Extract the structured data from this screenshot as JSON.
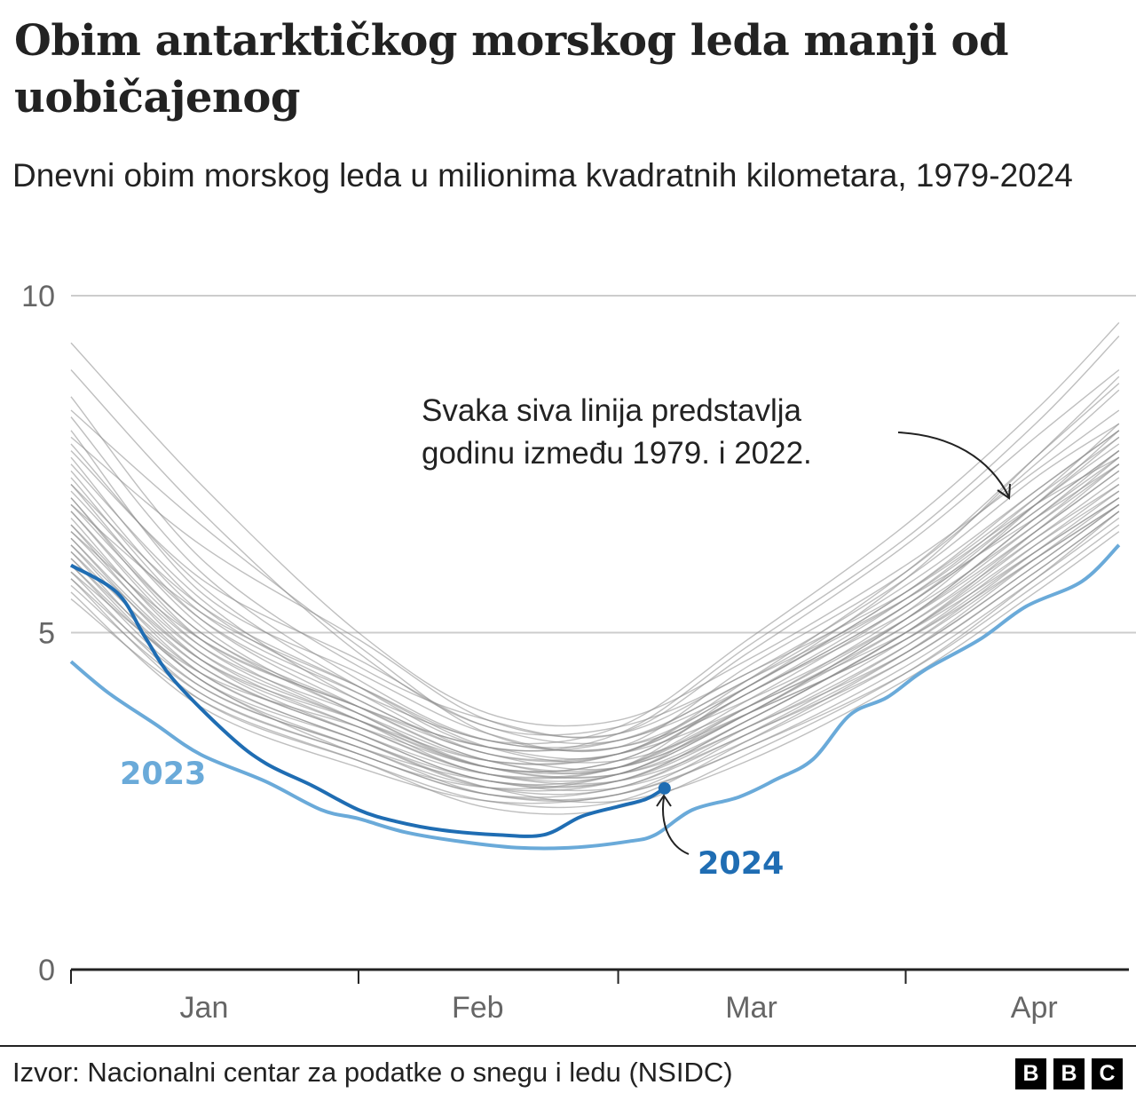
{
  "header": {
    "title": "Obim antarktičkog morskog leda manji od uobičajenog",
    "subtitle": "Dnevni obim morskog leda u milionima kvadratnih kilometara, 1979-2024"
  },
  "footer": {
    "source": "Izvor: Nacionalni centar za podatke o snegu i ledu (NSIDC)",
    "logo": [
      "B",
      "B",
      "C"
    ]
  },
  "chart_data": {
    "type": "line",
    "title": "Obim antarktičkog morskog leda manji od uobičajenog",
    "subtitle": "Dnevni obim morskog leda u milionima kvadratnih kilometara, 1979-2024",
    "ylim": [
      0,
      10
    ],
    "yticks": [
      {
        "value": 0,
        "label": "0"
      },
      {
        "value": 5,
        "label": "5"
      },
      {
        "value": 10,
        "label": "10"
      }
    ],
    "xlim": [
      "01-01",
      "04-24"
    ],
    "xticks": [
      {
        "label": "Jan",
        "start": "01-01"
      },
      {
        "label": "Feb",
        "start": "02-01"
      },
      {
        "label": "Mar",
        "start": "03-01"
      },
      {
        "label": "Apr",
        "start": "04-01"
      }
    ],
    "grid": "horizontal",
    "colors": {
      "grey_years": "#8a8a8a",
      "y2023": "#6aaad9",
      "y2024": "#1f6db3",
      "grid": "#cccccc",
      "axis": "#222222"
    },
    "annotations": {
      "grey_note": "Svaka siva linija predstavlja godinu između 1979. i 2022.",
      "label_2023": "2023",
      "label_2024": "2024"
    },
    "grey_years_range": "1979-2022",
    "grey_dates": [
      "01-01",
      "01-15",
      "02-01",
      "02-15",
      "03-01",
      "03-15",
      "04-01",
      "04-15",
      "04-24"
    ],
    "grey_series": [
      [
        9.3,
        7.2,
        5.0,
        3.8,
        3.7,
        4.6,
        6.0,
        7.4,
        8.3
      ],
      [
        8.9,
        6.8,
        4.7,
        3.6,
        3.6,
        4.4,
        5.8,
        7.3,
        8.1
      ],
      [
        8.5,
        6.1,
        4.5,
        3.7,
        3.5,
        4.7,
        6.3,
        7.9,
        8.9
      ],
      [
        8.2,
        5.9,
        4.3,
        3.4,
        3.4,
        4.2,
        5.6,
        7.0,
        7.9
      ],
      [
        8.0,
        5.6,
        4.4,
        3.5,
        3.3,
        4.5,
        5.9,
        7.5,
        8.6
      ],
      [
        7.8,
        5.7,
        4.2,
        3.3,
        3.5,
        4.8,
        6.4,
        8.1,
        9.4
      ],
      [
        7.6,
        5.4,
        4.1,
        3.2,
        3.2,
        4.1,
        5.4,
        6.8,
        7.7
      ],
      [
        7.5,
        5.5,
        4.0,
        3.3,
        3.4,
        4.3,
        5.7,
        7.1,
        8.0
      ],
      [
        7.4,
        5.3,
        4.1,
        3.4,
        3.3,
        4.0,
        5.2,
        6.5,
        7.4
      ],
      [
        7.3,
        5.2,
        3.9,
        3.1,
        3.0,
        4.2,
        5.5,
        6.9,
        7.9
      ],
      [
        7.2,
        5.1,
        3.8,
        3.0,
        3.1,
        4.1,
        5.5,
        7.0,
        8.1
      ],
      [
        7.1,
        5.2,
        4.0,
        3.2,
        3.2,
        3.9,
        5.1,
        6.4,
        7.2
      ],
      [
        7.0,
        5.0,
        3.9,
        3.1,
        3.0,
        3.8,
        5.2,
        6.7,
        7.6
      ],
      [
        7.0,
        4.9,
        3.7,
        2.9,
        3.0,
        4.0,
        5.4,
        6.9,
        7.8
      ],
      [
        6.9,
        5.0,
        3.8,
        3.0,
        2.9,
        3.7,
        5.0,
        6.3,
        7.1
      ],
      [
        6.8,
        4.8,
        3.7,
        3.0,
        3.1,
        4.1,
        5.3,
        6.6,
        7.5
      ],
      [
        6.8,
        4.9,
        3.9,
        3.2,
        3.0,
        3.8,
        4.9,
        6.2,
        7.0
      ],
      [
        6.7,
        4.7,
        3.6,
        2.9,
        2.9,
        3.9,
        5.2,
        6.6,
        7.6
      ],
      [
        6.6,
        4.8,
        3.8,
        3.1,
        3.2,
        4.2,
        5.6,
        7.1,
        8.0
      ],
      [
        6.6,
        4.6,
        3.5,
        2.8,
        2.8,
        3.7,
        5.0,
        6.4,
        7.3
      ],
      [
        6.5,
        4.7,
        3.7,
        3.0,
        2.9,
        3.6,
        4.8,
        6.1,
        6.9
      ],
      [
        6.4,
        4.5,
        3.5,
        2.8,
        2.9,
        3.8,
        5.1,
        6.5,
        7.4
      ],
      [
        6.4,
        4.6,
        3.6,
        2.9,
        2.8,
        3.5,
        4.7,
        6.0,
        6.9
      ],
      [
        6.3,
        4.4,
        3.4,
        2.7,
        2.7,
        3.6,
        4.9,
        6.3,
        7.2
      ],
      [
        6.2,
        4.5,
        3.5,
        2.9,
        3.0,
        3.9,
        5.0,
        6.2,
        7.0
      ],
      [
        6.2,
        4.3,
        3.3,
        2.7,
        2.8,
        3.7,
        5.0,
        6.5,
        7.5
      ],
      [
        6.1,
        4.4,
        3.4,
        2.8,
        2.7,
        3.4,
        4.6,
        5.9,
        6.8
      ],
      [
        6.0,
        4.2,
        3.3,
        2.6,
        2.6,
        3.5,
        4.8,
        6.2,
        7.1
      ],
      [
        6.0,
        4.3,
        3.2,
        2.7,
        2.9,
        3.8,
        5.2,
        6.7,
        7.7
      ],
      [
        5.9,
        4.1,
        3.2,
        2.6,
        2.6,
        3.3,
        4.5,
        5.8,
        6.7
      ],
      [
        5.8,
        4.2,
        3.3,
        2.8,
        2.8,
        3.6,
        4.7,
        6.0,
        6.9
      ],
      [
        5.8,
        4.0,
        3.1,
        2.5,
        2.5,
        3.4,
        4.7,
        6.1,
        7.0
      ],
      [
        5.7,
        4.1,
        3.2,
        2.6,
        2.7,
        3.5,
        4.6,
        5.9,
        6.8
      ],
      [
        5.6,
        3.9,
        3.0,
        2.5,
        2.6,
        3.3,
        4.4,
        5.7,
        6.6
      ],
      [
        5.5,
        4.0,
        3.1,
        2.4,
        2.4,
        3.2,
        4.4,
        5.8,
        6.8
      ],
      [
        7.7,
        5.8,
        4.6,
        3.6,
        3.4,
        4.3,
        5.5,
        6.7,
        7.5
      ],
      [
        7.9,
        6.3,
        4.9,
        3.7,
        3.5,
        4.4,
        5.6,
        6.9,
        7.6
      ],
      [
        8.3,
        6.6,
        4.8,
        3.5,
        3.3,
        4.2,
        5.8,
        7.6,
        8.8
      ],
      [
        6.9,
        5.3,
        4.2,
        3.4,
        3.6,
        4.9,
        6.6,
        8.3,
        9.6
      ],
      [
        7.2,
        5.4,
        4.2,
        3.3,
        3.1,
        3.8,
        4.9,
        6.1,
        6.9
      ],
      [
        6.5,
        4.9,
        3.9,
        3.3,
        3.2,
        4.3,
        5.9,
        7.6,
        8.7
      ],
      [
        6.3,
        4.6,
        3.7,
        3.1,
        3.2,
        4.1,
        5.4,
        6.8,
        7.7
      ],
      [
        5.9,
        4.4,
        3.6,
        3.0,
        3.0,
        3.9,
        5.3,
        6.9,
        8.0
      ],
      [
        6.1,
        4.3,
        3.4,
        2.7,
        2.5,
        3.1,
        4.3,
        5.6,
        6.5
      ]
    ],
    "series": [
      {
        "name": "2023",
        "points": [
          [
            "01-01",
            4.57
          ],
          [
            "01-05",
            4.11
          ],
          [
            "01-10",
            3.65
          ],
          [
            "01-15",
            3.19
          ],
          [
            "01-22",
            2.79
          ],
          [
            "01-28",
            2.37
          ],
          [
            "02-01",
            2.24
          ],
          [
            "02-06",
            2.04
          ],
          [
            "02-12",
            1.9
          ],
          [
            "02-18",
            1.81
          ],
          [
            "02-24",
            1.81
          ],
          [
            "03-02",
            1.9
          ],
          [
            "03-05",
            2.0
          ],
          [
            "03-09",
            2.37
          ],
          [
            "03-14",
            2.56
          ],
          [
            "03-18",
            2.82
          ],
          [
            "03-22",
            3.12
          ],
          [
            "03-26",
            3.78
          ],
          [
            "03-30",
            4.04
          ],
          [
            "04-03",
            4.44
          ],
          [
            "04-09",
            4.9
          ],
          [
            "04-14",
            5.39
          ],
          [
            "04-20",
            5.76
          ],
          [
            "04-24",
            6.3
          ]
        ]
      },
      {
        "name": "2024",
        "points": [
          [
            "01-01",
            6.0
          ],
          [
            "01-06",
            5.59
          ],
          [
            "01-09",
            4.93
          ],
          [
            "01-12",
            4.31
          ],
          [
            "01-18",
            3.48
          ],
          [
            "01-22",
            3.06
          ],
          [
            "01-27",
            2.73
          ],
          [
            "02-01",
            2.37
          ],
          [
            "02-05",
            2.2
          ],
          [
            "02-10",
            2.07
          ],
          [
            "02-16",
            2.0
          ],
          [
            "02-21",
            2.0
          ],
          [
            "02-25",
            2.27
          ],
          [
            "03-01",
            2.42
          ],
          [
            "03-04",
            2.53
          ],
          [
            "03-06",
            2.69
          ]
        ]
      }
    ]
  }
}
